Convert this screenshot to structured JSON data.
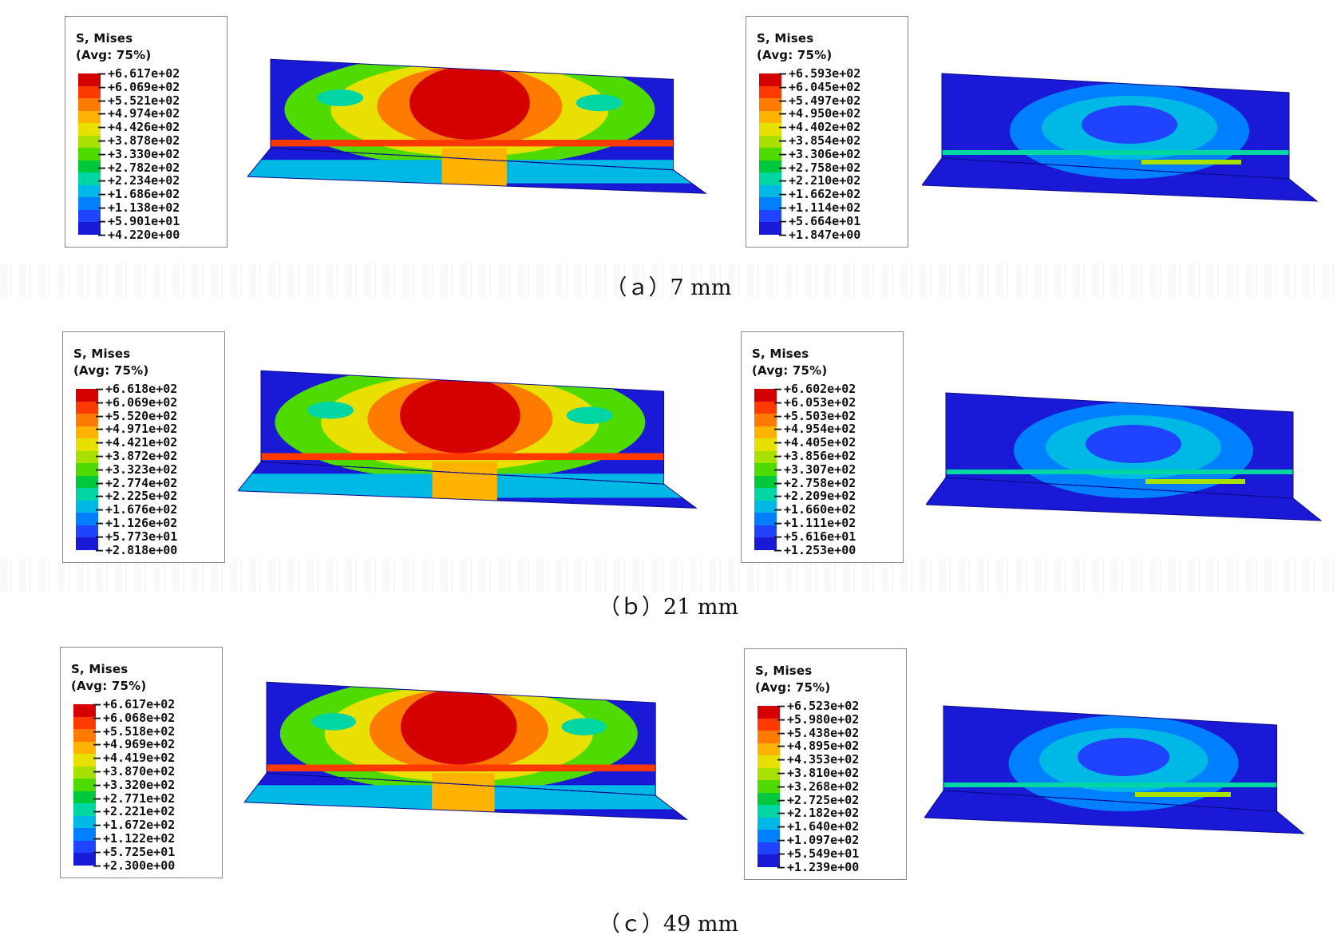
{
  "colormap": [
    "#d50000",
    "#ff3a00",
    "#ff7a00",
    "#ffb300",
    "#e8e000",
    "#a8e000",
    "#4fdb00",
    "#00c83c",
    "#00d6a4",
    "#00b8e6",
    "#0080ff",
    "#2043ff",
    "#1a1ad6"
  ],
  "rows": [
    {
      "caption": "（ａ）7 mm",
      "left": {
        "title_1": "S, Mises",
        "title_2": "(Avg: 75%)",
        "values": [
          "+6.617e+02",
          "+6.069e+02",
          "+5.521e+02",
          "+4.974e+02",
          "+4.426e+02",
          "+3.878e+02",
          "+3.330e+02",
          "+2.782e+02",
          "+2.234e+02",
          "+1.686e+02",
          "+1.138e+02",
          "+5.901e+01",
          "+4.220e+00"
        ]
      },
      "right": {
        "title_1": "S, Mises",
        "title_2": "(Avg: 75%)",
        "values": [
          "+6.593e+02",
          "+6.045e+02",
          "+5.497e+02",
          "+4.950e+02",
          "+4.402e+02",
          "+3.854e+02",
          "+3.306e+02",
          "+2.758e+02",
          "+2.210e+02",
          "+1.662e+02",
          "+1.114e+02",
          "+5.664e+01",
          "+1.847e+00"
        ]
      }
    },
    {
      "caption": "（ｂ）21 mm",
      "left": {
        "title_1": "S, Mises",
        "title_2": "(Avg: 75%)",
        "values": [
          "+6.618e+02",
          "+6.069e+02",
          "+5.520e+02",
          "+4.971e+02",
          "+4.421e+02",
          "+3.872e+02",
          "+3.323e+02",
          "+2.774e+02",
          "+2.225e+02",
          "+1.676e+02",
          "+1.126e+02",
          "+5.773e+01",
          "+2.818e+00"
        ]
      },
      "right": {
        "title_1": "S, Mises",
        "title_2": "(Avg: 75%)",
        "values": [
          "+6.602e+02",
          "+6.053e+02",
          "+5.503e+02",
          "+4.954e+02",
          "+4.405e+02",
          "+3.856e+02",
          "+3.307e+02",
          "+2.758e+02",
          "+2.209e+02",
          "+1.660e+02",
          "+1.111e+02",
          "+5.616e+01",
          "+1.253e+00"
        ]
      }
    },
    {
      "caption": "（ｃ）49 mm",
      "left": {
        "title_1": "S, Mises",
        "title_2": "(Avg: 75%)",
        "values": [
          "+6.617e+02",
          "+6.068e+02",
          "+5.518e+02",
          "+4.969e+02",
          "+4.419e+02",
          "+3.870e+02",
          "+3.320e+02",
          "+2.771e+02",
          "+2.221e+02",
          "+1.672e+02",
          "+1.122e+02",
          "+5.725e+01",
          "+2.300e+00"
        ]
      },
      "right": {
        "title_1": "S, Mises",
        "title_2": "(Avg: 75%)",
        "values": [
          "+6.523e+02",
          "+5.980e+02",
          "+5.438e+02",
          "+4.895e+02",
          "+4.353e+02",
          "+3.810e+02",
          "+3.268e+02",
          "+2.725e+02",
          "+2.182e+02",
          "+1.640e+02",
          "+1.097e+02",
          "+5.549e+01",
          "+1.239e+00"
        ]
      }
    }
  ]
}
